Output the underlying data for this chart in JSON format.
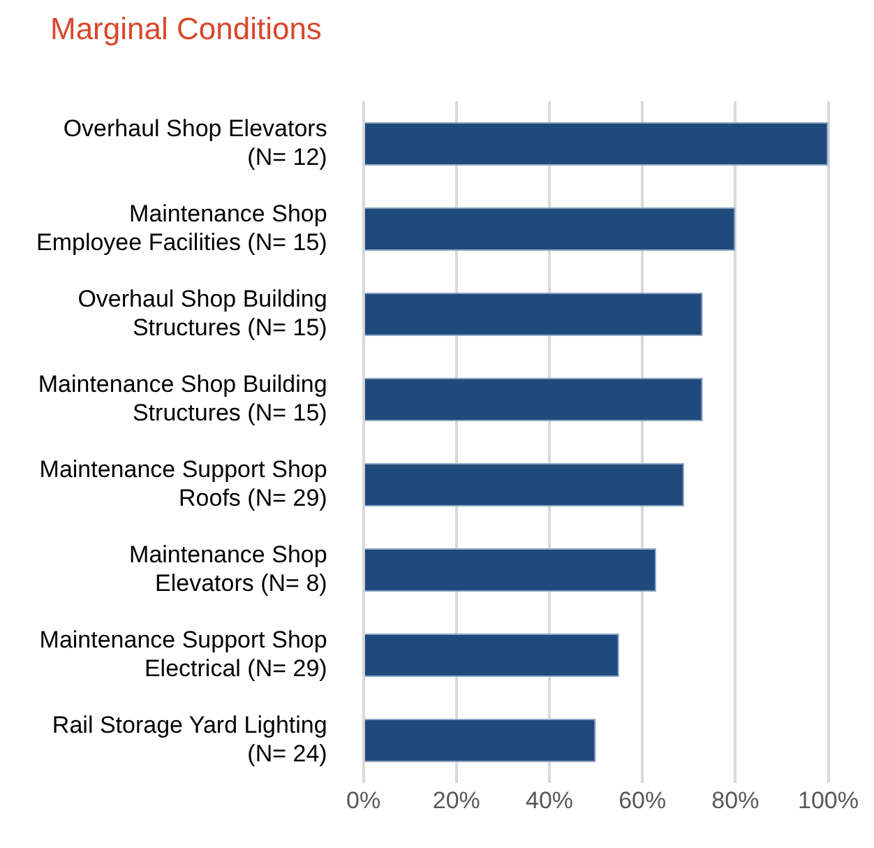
{
  "chart_data": {
    "type": "bar",
    "orientation": "horizontal",
    "title": "Marginal Conditions",
    "categories": [
      "Overhaul Shop Elevators\n(N= 12)",
      "Maintenance Shop\nEmployee Facilities (N= 15)",
      "Overhaul Shop Building\nStructures (N= 15)",
      "Maintenance Shop Building\nStructures (N= 15)",
      "Maintenance Support Shop\nRoofs (N= 29)",
      "Maintenance Shop\nElevators (N= 8)",
      "Maintenance Support Shop\nElectrical (N= 29)",
      "Rail Storage Yard Lighting\n(N= 24)"
    ],
    "values": [
      100,
      80,
      73,
      73,
      69,
      63,
      55,
      50
    ],
    "color": "#1f4a7c",
    "xlim": [
      0,
      100
    ],
    "xticks": [
      {
        "value": 0,
        "label": "0%"
      },
      {
        "value": 20,
        "label": "20%"
      },
      {
        "value": 40,
        "label": "40%"
      },
      {
        "value": 60,
        "label": "60%"
      },
      {
        "value": 80,
        "label": "80%"
      },
      {
        "value": 100,
        "label": "100%"
      }
    ],
    "grid": "x"
  }
}
